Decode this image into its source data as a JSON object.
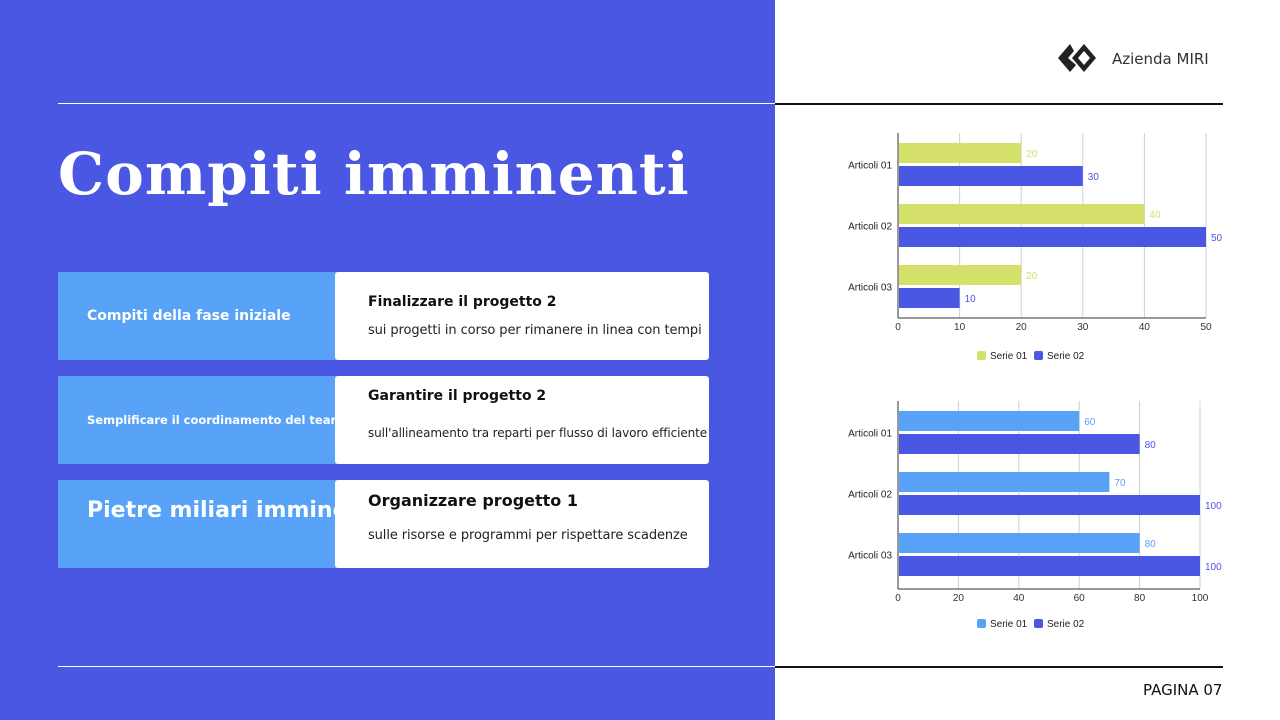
{
  "title": "Compiti imminenti",
  "brand": {
    "name": "Azienda MIRI",
    "logo_icon": "diamond-logo-icon"
  },
  "footer": {
    "page_label": "PAGINA 07"
  },
  "colors": {
    "left_panel": "#4a57e2",
    "label_box": "#58a3f7",
    "chart1_series1": "#d4e06a",
    "chart2_series1": "#58a3f7",
    "series2": "#4a57e2"
  },
  "tasks": [
    {
      "label": "Compiti della fase iniziale",
      "heading": "Finalizzare il progetto 2",
      "detail": "sui progetti in corso per rimanere in linea con tempi"
    },
    {
      "label": "Semplificare il coordinamento del team",
      "heading": "Garantire il progetto 2",
      "detail": "sull'allineamento tra reparti per flusso di lavoro efficiente"
    },
    {
      "label": "Pietre miliari imminenti",
      "heading": "Organizzare progetto 1",
      "detail": "sulle risorse e programmi per rispettare scadenze"
    }
  ],
  "chart_data": [
    {
      "type": "bar",
      "orientation": "horizontal",
      "categories": [
        "Articoli 01",
        "Articoli 02",
        "Articoli 03"
      ],
      "series": [
        {
          "name": "Serie 01",
          "values": [
            20,
            40,
            20
          ],
          "color": "#d4e06a"
        },
        {
          "name": "Serie 02",
          "values": [
            30,
            50,
            10
          ],
          "color": "#4a57e2"
        }
      ],
      "xlim": [
        0,
        50
      ],
      "xticks": [
        0,
        10,
        20,
        30,
        40,
        50
      ],
      "grid": true,
      "legend": "bottom"
    },
    {
      "type": "bar",
      "orientation": "horizontal",
      "categories": [
        "Articoli 01",
        "Articoli 02",
        "Articoli 03"
      ],
      "series": [
        {
          "name": "Serie 01",
          "values": [
            60,
            70,
            80
          ],
          "color": "#58a3f7"
        },
        {
          "name": "Serie 02",
          "values": [
            80,
            100,
            100
          ],
          "color": "#4a57e2"
        }
      ],
      "xlim": [
        0,
        100
      ],
      "xticks": [
        0,
        20,
        40,
        60,
        80,
        100
      ],
      "grid": true,
      "legend": "bottom"
    }
  ]
}
